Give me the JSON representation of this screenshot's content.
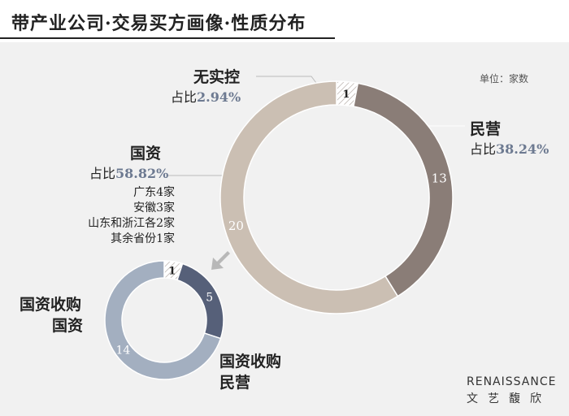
{
  "title": "带产业公司·交易买方画像·性质分布",
  "unit": "单位：家数",
  "chart_data": [
    {
      "type": "pie",
      "categories": [
        "无实控",
        "民营",
        "国资"
      ],
      "values": [
        1,
        13,
        20
      ],
      "percent_labels": [
        "2.94%",
        "38.24%",
        "58.82%"
      ],
      "pct_prefix": "占比",
      "breakdown": [
        "广东4家",
        "安徽3家",
        "山东和浙江各2家",
        "其余省份1家"
      ],
      "colors": [
        "#ffffff",
        "#8a7d77",
        "#cbbfb3"
      ]
    },
    {
      "type": "pie",
      "categories": [
        "",
        "国资收购国资",
        "国资收购民营"
      ],
      "display_labels": [
        "国资收购",
        "国资",
        "国资收购",
        "民营"
      ],
      "values": [
        1,
        5,
        14
      ],
      "colors": [
        "#ffffff",
        "#566079",
        "#a3afc0"
      ]
    }
  ],
  "logo": {
    "en": "RENAISSANCE",
    "cn": "文艺馥欣"
  }
}
